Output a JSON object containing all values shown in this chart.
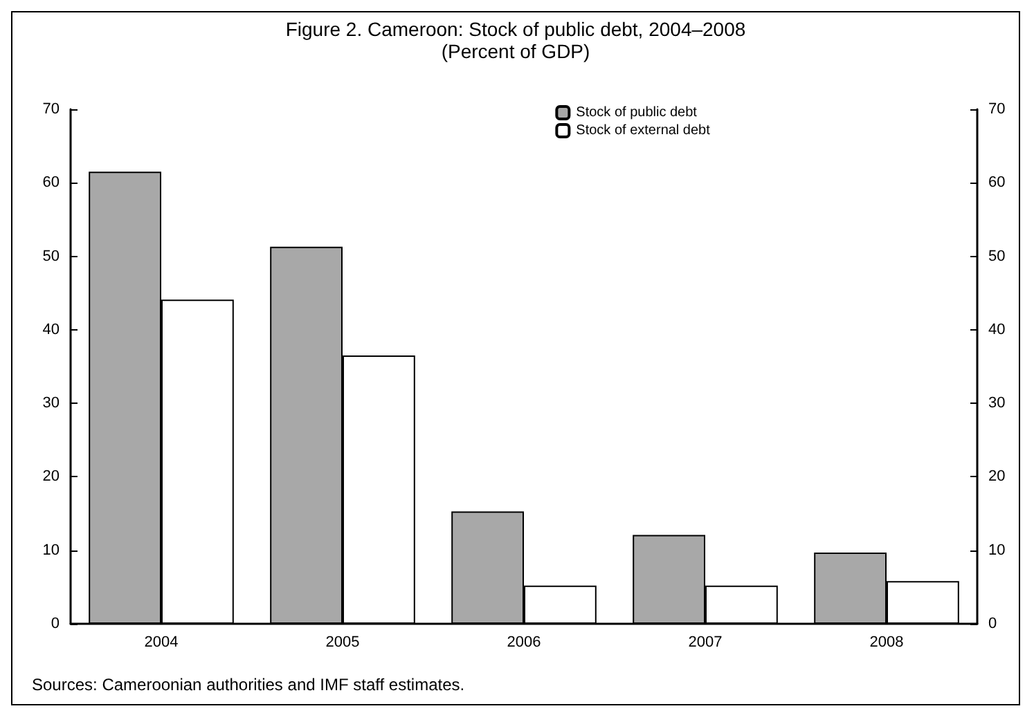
{
  "chart_data": {
    "type": "bar",
    "title": "Figure 2. Cameroon: Stock of public debt, 2004–2008",
    "subtitle": "(Percent of GDP)",
    "categories": [
      "2004",
      "2005",
      "2006",
      "2007",
      "2008"
    ],
    "series": [
      {
        "name": "Stock of public debt",
        "color": "#a8a8a8",
        "values": [
          61.5,
          51.3,
          15.3,
          12.1,
          9.7
        ]
      },
      {
        "name": "Stock of external debt",
        "color": "#ffffff",
        "values": [
          44.1,
          36.5,
          5.2,
          5.2,
          5.8
        ]
      }
    ],
    "ylim": [
      0,
      70
    ],
    "yticks": [
      0,
      10,
      20,
      30,
      40,
      50,
      60,
      70
    ],
    "y2lim": [
      0,
      70
    ],
    "y2ticks": [
      0,
      10,
      20,
      30,
      40,
      50,
      60,
      70
    ],
    "legend": "top right",
    "grid": false,
    "annotations": [
      "Sources: Cameroonian authorities and IMF staff estimates."
    ]
  }
}
